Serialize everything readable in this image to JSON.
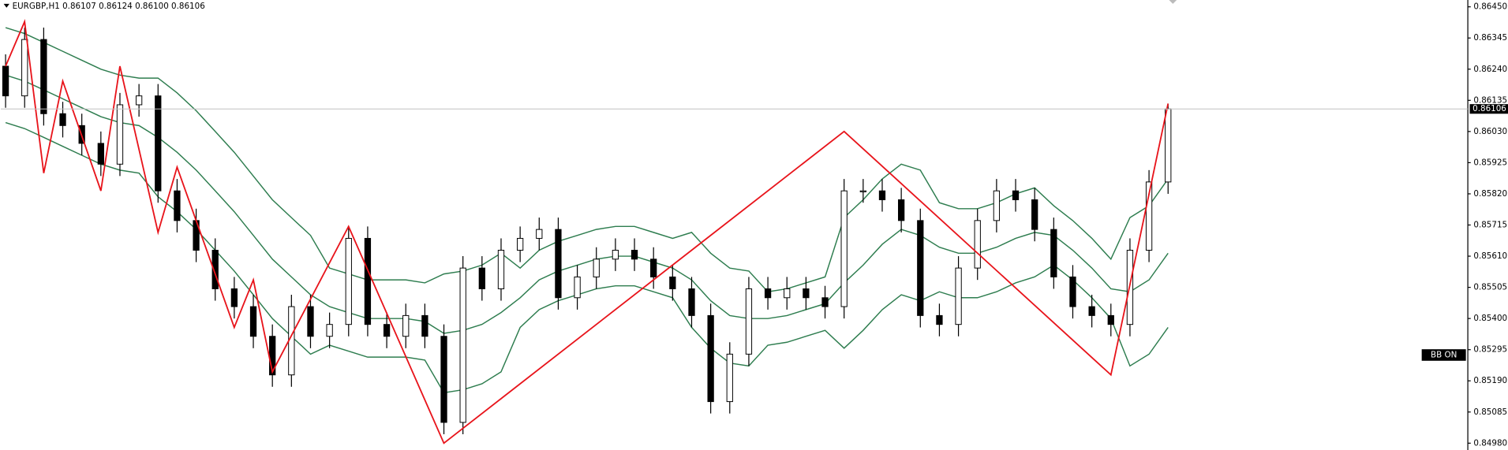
{
  "chart_data": {
    "type": "candlestick",
    "title": "EURGBP,H1  0.86107 0.86124 0.86100 0.86106",
    "open": [
      0.8625,
      0.8615,
      0.8634,
      0.8609,
      0.8605,
      0.8599,
      0.8592,
      0.8612,
      0.8615,
      0.8583,
      0.8573,
      0.8563,
      0.855,
      0.8544,
      0.8534,
      0.8521,
      0.8544,
      0.8534,
      0.8538,
      0.8567,
      0.8538,
      0.8534,
      0.8541,
      0.8534,
      0.8505,
      0.8557,
      0.855,
      0.8563,
      0.8567,
      0.857,
      0.8547,
      0.8554,
      0.856,
      0.8563,
      0.856,
      0.8554,
      0.855,
      0.8541,
      0.8512,
      0.8528,
      0.855,
      0.8547,
      0.855,
      0.8547,
      0.8544,
      0.8583,
      0.8583,
      0.858,
      0.8573,
      0.8541,
      0.8538,
      0.8557,
      0.8573,
      0.8583,
      0.858,
      0.857,
      0.8554,
      0.8544,
      0.8541,
      0.8538,
      0.8563,
      0.8586
    ],
    "high": [
      0.8629,
      0.8638,
      0.8638,
      0.8613,
      0.8609,
      0.8603,
      0.8616,
      0.8619,
      0.8619,
      0.8587,
      0.8577,
      0.8567,
      0.8554,
      0.8548,
      0.8538,
      0.8548,
      0.8548,
      0.8542,
      0.8571,
      0.8571,
      0.8542,
      0.8545,
      0.8545,
      0.8538,
      0.8561,
      0.8561,
      0.8567,
      0.8571,
      0.8574,
      0.8574,
      0.8558,
      0.8564,
      0.8567,
      0.8567,
      0.8564,
      0.8558,
      0.8554,
      0.8545,
      0.8532,
      0.8554,
      0.8554,
      0.8554,
      0.8554,
      0.8551,
      0.8587,
      0.8587,
      0.8587,
      0.8584,
      0.8577,
      0.8545,
      0.8561,
      0.8577,
      0.8587,
      0.8587,
      0.8584,
      0.8574,
      0.8558,
      0.8548,
      0.8545,
      0.8567,
      0.859,
      0.86124
    ],
    "low": [
      0.8611,
      0.8611,
      0.8605,
      0.8601,
      0.8595,
      0.8588,
      0.8588,
      0.8608,
      0.8579,
      0.8569,
      0.8559,
      0.8546,
      0.854,
      0.853,
      0.8517,
      0.8517,
      0.853,
      0.853,
      0.8534,
      0.8534,
      0.853,
      0.853,
      0.853,
      0.8501,
      0.8501,
      0.8546,
      0.8546,
      0.8559,
      0.8563,
      0.8543,
      0.8543,
      0.855,
      0.8556,
      0.8556,
      0.855,
      0.8546,
      0.8537,
      0.8508,
      0.8508,
      0.8524,
      0.8543,
      0.8543,
      0.8543,
      0.854,
      0.854,
      0.8579,
      0.8576,
      0.8569,
      0.8537,
      0.8534,
      0.8534,
      0.8553,
      0.8569,
      0.8576,
      0.8566,
      0.855,
      0.854,
      0.8537,
      0.8534,
      0.8534,
      0.8559,
      0.8582
    ],
    "close": [
      0.8615,
      0.8634,
      0.8609,
      0.8605,
      0.8599,
      0.8592,
      0.8612,
      0.8615,
      0.8583,
      0.8573,
      0.8563,
      0.855,
      0.8544,
      0.8534,
      0.8521,
      0.8544,
      0.8534,
      0.8538,
      0.8567,
      0.8538,
      0.8534,
      0.8541,
      0.8534,
      0.8505,
      0.8557,
      0.855,
      0.8563,
      0.8567,
      0.857,
      0.8547,
      0.8554,
      0.856,
      0.8563,
      0.856,
      0.8554,
      0.855,
      0.8541,
      0.8512,
      0.8528,
      0.855,
      0.8547,
      0.855,
      0.8547,
      0.8544,
      0.8583,
      0.8583,
      0.858,
      0.8573,
      0.8541,
      0.8538,
      0.8557,
      0.8573,
      0.8583,
      0.858,
      0.857,
      0.8554,
      0.8544,
      0.8541,
      0.8538,
      0.8563,
      0.8586,
      0.86106
    ],
    "bands": {
      "color": "#2e7d4f",
      "upper": [
        0.8638,
        0.8636,
        0.8633,
        0.863,
        0.8627,
        0.8624,
        0.8622,
        0.8621,
        0.8621,
        0.8616,
        0.861,
        0.8603,
        0.8596,
        0.8588,
        0.858,
        0.8574,
        0.8568,
        0.8557,
        0.8555,
        0.8553,
        0.8553,
        0.8553,
        0.8552,
        0.8555,
        0.8556,
        0.8558,
        0.8562,
        0.8557,
        0.8563,
        0.8566,
        0.8568,
        0.857,
        0.8571,
        0.8571,
        0.8569,
        0.8567,
        0.8569,
        0.8562,
        0.8557,
        0.8556,
        0.8549,
        0.855,
        0.8552,
        0.8554,
        0.8574,
        0.858,
        0.8587,
        0.8592,
        0.859,
        0.8579,
        0.8577,
        0.8577,
        0.8579,
        0.8582,
        0.8584,
        0.8578,
        0.8573,
        0.8567,
        0.856,
        0.8574,
        0.8578,
        0.8587
      ],
      "middle": [
        0.8622,
        0.862,
        0.8617,
        0.8614,
        0.8611,
        0.8608,
        0.8606,
        0.8605,
        0.8601,
        0.8596,
        0.859,
        0.8583,
        0.8576,
        0.8568,
        0.856,
        0.8554,
        0.8548,
        0.8544,
        0.8542,
        0.854,
        0.854,
        0.854,
        0.8539,
        0.8535,
        0.8536,
        0.8538,
        0.8542,
        0.8547,
        0.8553,
        0.8556,
        0.8558,
        0.856,
        0.8561,
        0.8561,
        0.8559,
        0.8557,
        0.8553,
        0.8546,
        0.8541,
        0.854,
        0.854,
        0.8541,
        0.8543,
        0.8545,
        0.8552,
        0.8558,
        0.8565,
        0.857,
        0.8568,
        0.8564,
        0.8562,
        0.8562,
        0.8564,
        0.8567,
        0.8569,
        0.8568,
        0.8563,
        0.8557,
        0.855,
        0.8549,
        0.8553,
        0.8562
      ],
      "lower": [
        0.8606,
        0.8604,
        0.8601,
        0.8598,
        0.8595,
        0.8592,
        0.859,
        0.8589,
        0.8581,
        0.8576,
        0.857,
        0.8563,
        0.8556,
        0.8548,
        0.854,
        0.8534,
        0.8528,
        0.8531,
        0.8529,
        0.8527,
        0.8527,
        0.8527,
        0.8526,
        0.8515,
        0.8516,
        0.8518,
        0.8522,
        0.8537,
        0.8543,
        0.8546,
        0.8548,
        0.855,
        0.8551,
        0.8551,
        0.8549,
        0.8547,
        0.8537,
        0.853,
        0.8525,
        0.8524,
        0.8531,
        0.8532,
        0.8534,
        0.8536,
        0.853,
        0.8536,
        0.8543,
        0.8548,
        0.8546,
        0.8549,
        0.8547,
        0.8547,
        0.8549,
        0.8552,
        0.8554,
        0.8558,
        0.8553,
        0.8547,
        0.854,
        0.8524,
        0.8528,
        0.8537
      ]
    },
    "zigzag": {
      "color": "#e8141b",
      "x": [
        0,
        1,
        2,
        3,
        5,
        6,
        8,
        9,
        12,
        13,
        14,
        18,
        23,
        44,
        58,
        61
      ],
      "values": [
        0.8625,
        0.864,
        0.8589,
        0.862,
        0.8583,
        0.8625,
        0.8569,
        0.8591,
        0.8537,
        0.8553,
        0.8522,
        0.8571,
        0.8498,
        0.8603,
        0.8521,
        0.86124
      ]
    },
    "ylim": [
      0.84957,
      0.86473
    ],
    "yticks": [
      {
        "value": 0.8645,
        "label": "0.86450"
      },
      0.86345,
      {
        "value": 0.8624,
        "label": "0.86240"
      },
      0.86135,
      {
        "value": 0.8603,
        "label": "0.86030"
      },
      0.85925,
      {
        "value": 0.8582,
        "label": "0.85820"
      },
      0.85715,
      {
        "value": 0.8561,
        "label": "0.85610"
      },
      0.85505,
      {
        "value": 0.854,
        "label": "0.85400"
      },
      0.85295,
      {
        "value": 0.8519,
        "label": "0.85190"
      },
      0.85085,
      {
        "value": 0.8498,
        "label": "0.84980"
      }
    ],
    "annotation": "BB ON"
  }
}
